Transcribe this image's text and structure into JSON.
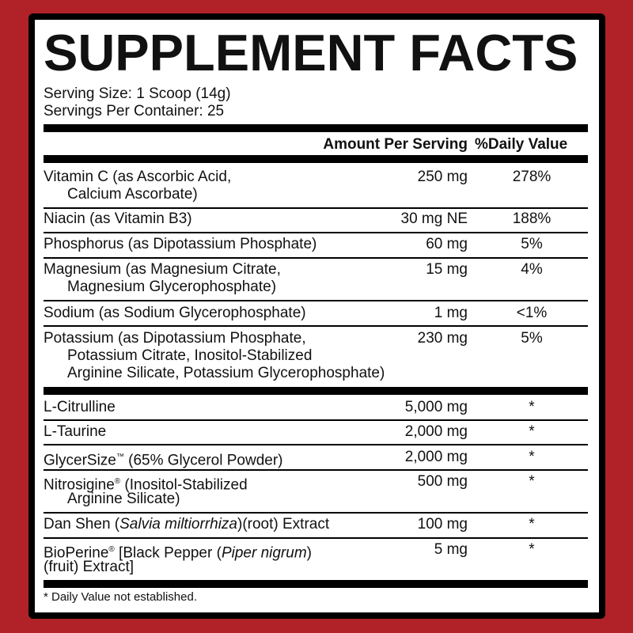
{
  "title": "SUPPLEMENT FACTS",
  "serving_size": "Serving Size: 1 Scoop (14g)",
  "servings_per_container": "Servings Per Container: 25",
  "header": {
    "amount": "Amount Per Serving",
    "dv": "%Daily Value"
  },
  "rows": [
    {
      "name": "Vitamin C (as Ascorbic Acid,",
      "name2": "Calcium Ascorbate)",
      "amount": "250 mg",
      "dv": "278%"
    },
    {
      "name": "Niacin (as Vitamin B3)",
      "amount": "30 mg NE",
      "dv": "188%"
    },
    {
      "name": "Phosphorus (as Dipotassium Phosphate)",
      "amount": "60 mg",
      "dv": "5%"
    },
    {
      "name": "Magnesium (as Magnesium Citrate,",
      "name2": "Magnesium Glycerophosphate)",
      "amount": "15 mg",
      "dv": "4%"
    },
    {
      "name": "Sodium (as Sodium Glycerophosphate)",
      "amount": "1 mg",
      "dv": "<1%"
    },
    {
      "name": "Potassium (as Dipotassium Phosphate,",
      "name2": "Potassium Citrate, Inositol-Stabilized",
      "name3": "Arginine Silicate, Potassium Glycerophosphate)",
      "amount": "230 mg",
      "dv": "5%"
    },
    {
      "name": "L-Citrulline",
      "amount": "5,000 mg",
      "dv": "*"
    },
    {
      "name": "L-Taurine",
      "amount": "2,000 mg",
      "dv": "*"
    },
    {
      "name": "GlycerSize",
      "mark": "™",
      "rest": " (65% Glycerol Powder)",
      "amount": "2,000 mg",
      "dv": "*"
    },
    {
      "name": "Nitrosigine",
      "mark": "®",
      "rest": " (Inositol-Stabilized",
      "name2": "Arginine Silicate)",
      "amount": "500 mg",
      "dv": "*"
    },
    {
      "name": "Dan Shen (",
      "italic": "Salvia miltiorrhiza",
      "rest": ")(root) Extract",
      "amount": "100 mg",
      "dv": "*"
    },
    {
      "name": "BioPerine",
      "mark": "®",
      "rest": " [Black Pepper (",
      "italic": "Piper nigrum",
      "rest2": ")",
      "name2": "(fruit) Extract]",
      "amount": "5 mg",
      "dv": "*"
    }
  ],
  "footnote": "* Daily Value not established.",
  "colors": {
    "background": "#b02228",
    "border": "#000000"
  }
}
